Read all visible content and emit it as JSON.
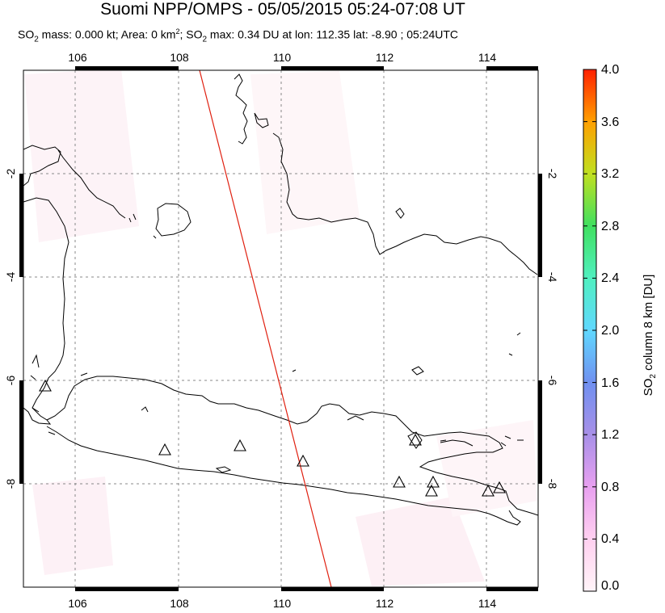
{
  "title": "Suomi NPP/OMPS - 05/05/2015 05:24-07:08 UT",
  "subtitle": {
    "mass_prefix": "SO",
    "mass_sub": "2",
    "mass_text": " mass: 0.000 kt; Area: 0 km",
    "area_sup": "2",
    "max_prefix": "; SO",
    "max_sub": "2",
    "max_text": " max: 0.34 DU at lon: 112.35 lat: -8.90 ; 05:24UTC"
  },
  "map": {
    "lon_ticks": [
      "106",
      "108",
      "110",
      "112",
      "114"
    ],
    "lat_ticks": [
      "-2",
      "-4",
      "-6",
      "-8"
    ],
    "lon_range": [
      105,
      115
    ],
    "lat_range": [
      -10,
      0
    ],
    "orbit_track_color": "#e02010",
    "volcano_marker": "triangle-outline"
  },
  "colorbar": {
    "title_prefix": "SO",
    "title_sub": "2",
    "title_text": " column 8 km [DU]",
    "labels": [
      "4.0",
      "3.6",
      "3.2",
      "2.8",
      "2.4",
      "2.0",
      "1.6",
      "1.2",
      "0.8",
      "0.4",
      "0.0"
    ],
    "colors": [
      "#ff2000",
      "#ff8000",
      "#d8d800",
      "#50e050",
      "#40f0a0",
      "#60ffff",
      "#6090f0",
      "#9090e0",
      "#d880e8",
      "#ffc0f0",
      "#fff4f8"
    ]
  }
}
